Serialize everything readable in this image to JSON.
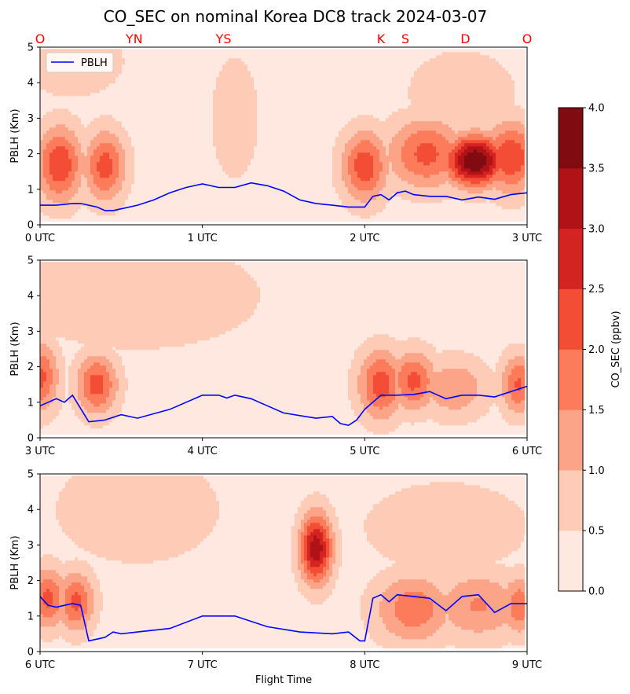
{
  "title": "CO_SEC on nominal Korea DC8 track 2024-03-07",
  "site_labels": [
    {
      "text": "O",
      "t": 0.0
    },
    {
      "text": "YN",
      "t": 0.58
    },
    {
      "text": "YS",
      "t": 1.13
    },
    {
      "text": "K",
      "t": 2.1
    },
    {
      "text": "S",
      "t": 2.25
    },
    {
      "text": "D",
      "t": 2.62
    },
    {
      "text": "O",
      "t": 3.0
    }
  ],
  "site_label_color": "#ff0000",
  "legend_label": "PBLH",
  "pblh_color": "#0000ff",
  "colorbar": {
    "label": "CO_SEC (ppbv)",
    "levels": [
      0.0,
      0.5,
      1.0,
      1.5,
      2.0,
      2.5,
      3.0,
      3.5,
      4.0
    ],
    "tick_labels": [
      "0.0",
      "0.5",
      "1.0",
      "1.5",
      "2.0",
      "2.5",
      "3.0",
      "3.5",
      "4.0"
    ],
    "colors": [
      "#fee8df",
      "#fdcbb6",
      "#fca487",
      "#fb7b5b",
      "#f34d36",
      "#d42421",
      "#b01217",
      "#800b10"
    ]
  },
  "chart_data": [
    {
      "type": "heatmap",
      "panel": "0-3 UTC",
      "ylabel": "PBLH (Km)",
      "xlabel": "",
      "xlim": [
        0,
        3
      ],
      "ylim": [
        0,
        5
      ],
      "xtick_values": [
        0,
        1,
        2,
        3
      ],
      "xtick_labels": [
        "0 UTC",
        "1 UTC",
        "2 UTC",
        "3 UTC"
      ],
      "ytick_values": [
        0,
        1,
        2,
        3,
        4,
        5
      ],
      "ytick_labels": [
        "0",
        "1",
        "2",
        "3",
        "4",
        "5"
      ],
      "co_sec_blobs": [
        {
          "t": 0.12,
          "z": 1.7,
          "peak": 2.2,
          "st": 0.1,
          "sz": 0.75
        },
        {
          "t": 0.4,
          "z": 1.65,
          "peak": 2.0,
          "st": 0.09,
          "sz": 0.7
        },
        {
          "t": 0.13,
          "z": 1.3,
          "peak": 1.0,
          "st": 0.02,
          "sz": 0.25
        },
        {
          "t": 1.2,
          "z": 3.0,
          "peak": 0.7,
          "st": 0.1,
          "sz": 1.2
        },
        {
          "t": 0.2,
          "z": 4.6,
          "peak": 0.55,
          "st": 0.25,
          "sz": 0.8
        },
        {
          "t": 2.0,
          "z": 1.65,
          "peak": 2.1,
          "st": 0.1,
          "sz": 0.7
        },
        {
          "t": 2.38,
          "z": 2.0,
          "peak": 1.9,
          "st": 0.17,
          "sz": 0.7
        },
        {
          "t": 2.68,
          "z": 1.8,
          "peak": 3.8,
          "st": 0.13,
          "sz": 0.5
        },
        {
          "t": 2.9,
          "z": 1.9,
          "peak": 2.2,
          "st": 0.12,
          "sz": 0.7
        },
        {
          "t": 2.6,
          "z": 3.7,
          "peak": 0.6,
          "st": 0.25,
          "sz": 0.9
        }
      ],
      "pblh_t": [
        0.0,
        0.1,
        0.2,
        0.25,
        0.3,
        0.35,
        0.4,
        0.45,
        0.5,
        0.6,
        0.7,
        0.8,
        0.9,
        1.0,
        1.1,
        1.2,
        1.3,
        1.4,
        1.5,
        1.6,
        1.7,
        1.8,
        1.9,
        2.0,
        2.05,
        2.1,
        2.15,
        2.2,
        2.25,
        2.3,
        2.4,
        2.5,
        2.6,
        2.7,
        2.8,
        2.9,
        3.0
      ],
      "pblh_z": [
        0.55,
        0.55,
        0.6,
        0.6,
        0.55,
        0.5,
        0.4,
        0.4,
        0.45,
        0.55,
        0.7,
        0.9,
        1.05,
        1.15,
        1.05,
        1.05,
        1.18,
        1.1,
        0.95,
        0.7,
        0.6,
        0.55,
        0.5,
        0.5,
        0.8,
        0.85,
        0.7,
        0.9,
        0.95,
        0.85,
        0.8,
        0.8,
        0.7,
        0.78,
        0.72,
        0.85,
        0.9
      ]
    },
    {
      "type": "heatmap",
      "panel": "3-6 UTC",
      "ylabel": "PBLH (Km)",
      "xlabel": "",
      "xlim": [
        3,
        6
      ],
      "ylim": [
        0,
        5
      ],
      "xtick_values": [
        3,
        4,
        5,
        6
      ],
      "xtick_labels": [
        "3 UTC",
        "4 UTC",
        "5 UTC",
        "6 UTC"
      ],
      "ytick_values": [
        0,
        1,
        2,
        3,
        4,
        5
      ],
      "ytick_labels": [
        "0",
        "1",
        "2",
        "3",
        "4",
        "5"
      ],
      "co_sec_blobs": [
        {
          "t": 3.0,
          "z": 1.7,
          "peak": 1.9,
          "st": 0.08,
          "sz": 0.7
        },
        {
          "t": 3.35,
          "z": 1.5,
          "peak": 2.0,
          "st": 0.09,
          "sz": 0.6
        },
        {
          "t": 3.6,
          "z": 4.0,
          "peak": 0.55,
          "st": 0.6,
          "sz": 1.2
        },
        {
          "t": 5.1,
          "z": 1.5,
          "peak": 2.0,
          "st": 0.1,
          "sz": 0.7
        },
        {
          "t": 5.3,
          "z": 1.6,
          "peak": 1.9,
          "st": 0.1,
          "sz": 0.6
        },
        {
          "t": 5.55,
          "z": 1.4,
          "peak": 1.2,
          "st": 0.15,
          "sz": 0.6
        },
        {
          "t": 5.95,
          "z": 1.5,
          "peak": 1.8,
          "st": 0.08,
          "sz": 0.6
        }
      ],
      "pblh_t": [
        3.0,
        3.05,
        3.1,
        3.15,
        3.2,
        3.3,
        3.4,
        3.5,
        3.6,
        3.8,
        4.0,
        4.1,
        4.15,
        4.2,
        4.3,
        4.4,
        4.5,
        4.7,
        4.8,
        4.85,
        4.9,
        4.95,
        5.0,
        5.1,
        5.2,
        5.3,
        5.4,
        5.5,
        5.6,
        5.7,
        5.8,
        5.9,
        6.0
      ],
      "pblh_z": [
        0.9,
        1.0,
        1.1,
        1.0,
        1.2,
        0.45,
        0.5,
        0.65,
        0.55,
        0.8,
        1.2,
        1.2,
        1.12,
        1.2,
        1.1,
        0.9,
        0.7,
        0.55,
        0.6,
        0.4,
        0.35,
        0.5,
        0.8,
        1.2,
        1.2,
        1.22,
        1.3,
        1.1,
        1.2,
        1.2,
        1.15,
        1.3,
        1.45
      ]
    },
    {
      "type": "heatmap",
      "panel": "6-9 UTC",
      "ylabel": "PBLH (Km)",
      "xlabel": "Flight Time",
      "xlim": [
        6,
        9
      ],
      "ylim": [
        0,
        5
      ],
      "xtick_values": [
        6,
        7,
        8,
        9
      ],
      "xtick_labels": [
        "6 UTC",
        "7 UTC",
        "8 UTC",
        "9 UTC"
      ],
      "ytick_values": [
        0,
        1,
        2,
        3,
        4,
        5
      ],
      "ytick_labels": [
        "0",
        "1",
        "2",
        "3",
        "4",
        "5"
      ],
      "co_sec_blobs": [
        {
          "t": 6.05,
          "z": 1.5,
          "peak": 1.9,
          "st": 0.08,
          "sz": 0.6
        },
        {
          "t": 6.22,
          "z": 1.4,
          "peak": 1.9,
          "st": 0.08,
          "sz": 0.6
        },
        {
          "t": 7.7,
          "z": 2.9,
          "peak": 3.1,
          "st": 0.07,
          "sz": 0.7
        },
        {
          "t": 6.6,
          "z": 4.0,
          "peak": 0.55,
          "st": 0.4,
          "sz": 1.2
        },
        {
          "t": 8.3,
          "z": 1.2,
          "peak": 1.6,
          "st": 0.17,
          "sz": 0.7
        },
        {
          "t": 8.7,
          "z": 1.3,
          "peak": 1.3,
          "st": 0.2,
          "sz": 0.7
        },
        {
          "t": 8.95,
          "z": 1.3,
          "peak": 1.6,
          "st": 0.08,
          "sz": 0.6
        },
        {
          "t": 8.5,
          "z": 3.5,
          "peak": 0.55,
          "st": 0.4,
          "sz": 1.0
        }
      ],
      "pblh_t": [
        6.0,
        6.05,
        6.1,
        6.15,
        6.2,
        6.25,
        6.3,
        6.35,
        6.4,
        6.45,
        6.5,
        6.6,
        6.8,
        7.0,
        7.2,
        7.4,
        7.6,
        7.8,
        7.9,
        7.97,
        8.0,
        8.05,
        8.1,
        8.15,
        8.2,
        8.3,
        8.4,
        8.5,
        8.6,
        8.7,
        8.8,
        8.9,
        9.0
      ],
      "pblh_z": [
        1.55,
        1.3,
        1.25,
        1.3,
        1.35,
        1.3,
        0.3,
        0.35,
        0.4,
        0.55,
        0.5,
        0.55,
        0.65,
        1.0,
        1.0,
        0.7,
        0.55,
        0.5,
        0.55,
        0.3,
        0.3,
        1.5,
        1.6,
        1.4,
        1.6,
        1.55,
        1.5,
        1.15,
        1.55,
        1.6,
        1.1,
        1.35,
        1.35
      ]
    }
  ]
}
